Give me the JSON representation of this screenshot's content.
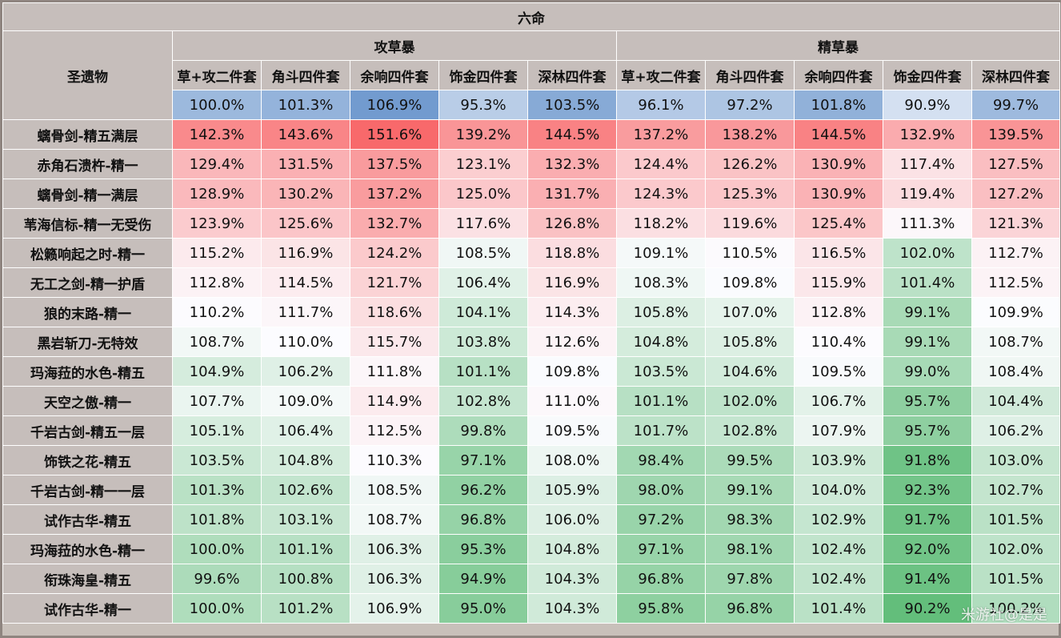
{
  "title": "六命",
  "row_header": "圣遗物",
  "groups": [
    "攻草暴",
    "精草暴"
  ],
  "sets": [
    "草+攻二件套",
    "角斗四件套",
    "余响四件套",
    "饰金四件套",
    "深林四件套",
    "草+攻二件套",
    "角斗四件套",
    "余响四件套",
    "饰金四件套",
    "深林四件套"
  ],
  "baseline": [
    "100.0%",
    "101.3%",
    "106.9%",
    "95.3%",
    "103.5%",
    "96.1%",
    "97.2%",
    "101.8%",
    "90.9%",
    "99.7%"
  ],
  "rows": [
    {
      "name": "螭骨剑-精五满层",
      "values": [
        "142.3%",
        "143.6%",
        "151.6%",
        "139.2%",
        "144.5%",
        "137.2%",
        "138.2%",
        "144.5%",
        "132.9%",
        "139.5%"
      ]
    },
    {
      "name": "赤角石溃杵-精一",
      "values": [
        "129.4%",
        "131.5%",
        "137.5%",
        "123.1%",
        "132.3%",
        "124.4%",
        "126.2%",
        "130.9%",
        "117.4%",
        "127.5%"
      ]
    },
    {
      "name": "螭骨剑-精一满层",
      "values": [
        "128.9%",
        "130.2%",
        "137.2%",
        "125.0%",
        "131.7%",
        "124.3%",
        "125.3%",
        "130.9%",
        "119.4%",
        "127.2%"
      ]
    },
    {
      "name": "苇海信标-精一无受伤",
      "values": [
        "123.9%",
        "125.6%",
        "132.7%",
        "117.6%",
        "126.8%",
        "118.2%",
        "119.6%",
        "125.4%",
        "111.3%",
        "121.3%"
      ]
    },
    {
      "name": "松籁响起之时-精一",
      "values": [
        "115.2%",
        "116.9%",
        "124.2%",
        "108.5%",
        "118.8%",
        "109.1%",
        "110.5%",
        "116.5%",
        "102.0%",
        "112.7%"
      ]
    },
    {
      "name": "无工之剑-精一护盾",
      "values": [
        "112.8%",
        "114.5%",
        "121.7%",
        "106.4%",
        "116.9%",
        "108.3%",
        "109.8%",
        "115.9%",
        "101.4%",
        "112.5%"
      ]
    },
    {
      "name": "狼的末路-精一",
      "values": [
        "110.2%",
        "111.7%",
        "118.6%",
        "104.1%",
        "114.3%",
        "105.8%",
        "107.0%",
        "112.8%",
        "99.1%",
        "109.9%"
      ]
    },
    {
      "name": "黑岩斩刀-无特效",
      "values": [
        "108.7%",
        "110.0%",
        "115.7%",
        "103.8%",
        "112.6%",
        "104.8%",
        "105.8%",
        "110.4%",
        "99.1%",
        "108.7%"
      ]
    },
    {
      "name": "玛海菈的水色-精五",
      "values": [
        "104.9%",
        "106.2%",
        "111.8%",
        "101.1%",
        "109.8%",
        "103.5%",
        "104.6%",
        "109.5%",
        "99.0%",
        "108.4%"
      ]
    },
    {
      "name": "天空之傲-精一",
      "values": [
        "107.7%",
        "109.0%",
        "114.9%",
        "102.8%",
        "111.0%",
        "101.1%",
        "102.0%",
        "106.7%",
        "95.7%",
        "104.4%"
      ]
    },
    {
      "name": "千岩古剑-精五一层",
      "values": [
        "105.1%",
        "106.4%",
        "112.5%",
        "99.8%",
        "109.5%",
        "101.7%",
        "102.8%",
        "107.9%",
        "95.7%",
        "106.2%"
      ]
    },
    {
      "name": "饰铁之花-精五",
      "values": [
        "103.5%",
        "104.8%",
        "110.3%",
        "97.1%",
        "108.0%",
        "98.4%",
        "99.5%",
        "103.9%",
        "91.8%",
        "103.0%"
      ]
    },
    {
      "name": "千岩古剑-精一一层",
      "values": [
        "101.3%",
        "102.6%",
        "108.5%",
        "96.2%",
        "105.9%",
        "98.0%",
        "99.1%",
        "104.0%",
        "92.3%",
        "102.7%"
      ]
    },
    {
      "name": "试作古华-精五",
      "values": [
        "101.8%",
        "103.1%",
        "108.7%",
        "96.8%",
        "106.0%",
        "97.2%",
        "98.3%",
        "102.9%",
        "91.7%",
        "101.5%"
      ]
    },
    {
      "name": "玛海菈的水色-精一",
      "values": [
        "100.0%",
        "101.1%",
        "106.3%",
        "95.3%",
        "104.8%",
        "97.1%",
        "98.1%",
        "102.4%",
        "92.0%",
        "102.0%"
      ]
    },
    {
      "name": "衔珠海皇-精五",
      "values": [
        "99.6%",
        "100.8%",
        "106.3%",
        "94.9%",
        "104.3%",
        "96.8%",
        "97.8%",
        "102.4%",
        "91.4%",
        "101.5%"
      ]
    },
    {
      "name": "试作古华-精一",
      "values": [
        "100.0%",
        "101.2%",
        "106.9%",
        "95.0%",
        "104.3%",
        "95.8%",
        "96.8%",
        "101.4%",
        "90.2%",
        "100.2%"
      ]
    }
  ],
  "watermark": "米游社@是是",
  "colors": {
    "header_bg": "#c6bebb",
    "border": "#ffffff",
    "scale_red": "#f8696b",
    "scale_white": "#fcfcff",
    "scale_green": "#63be7b",
    "baseline_blue": "#5a8ac6"
  }
}
